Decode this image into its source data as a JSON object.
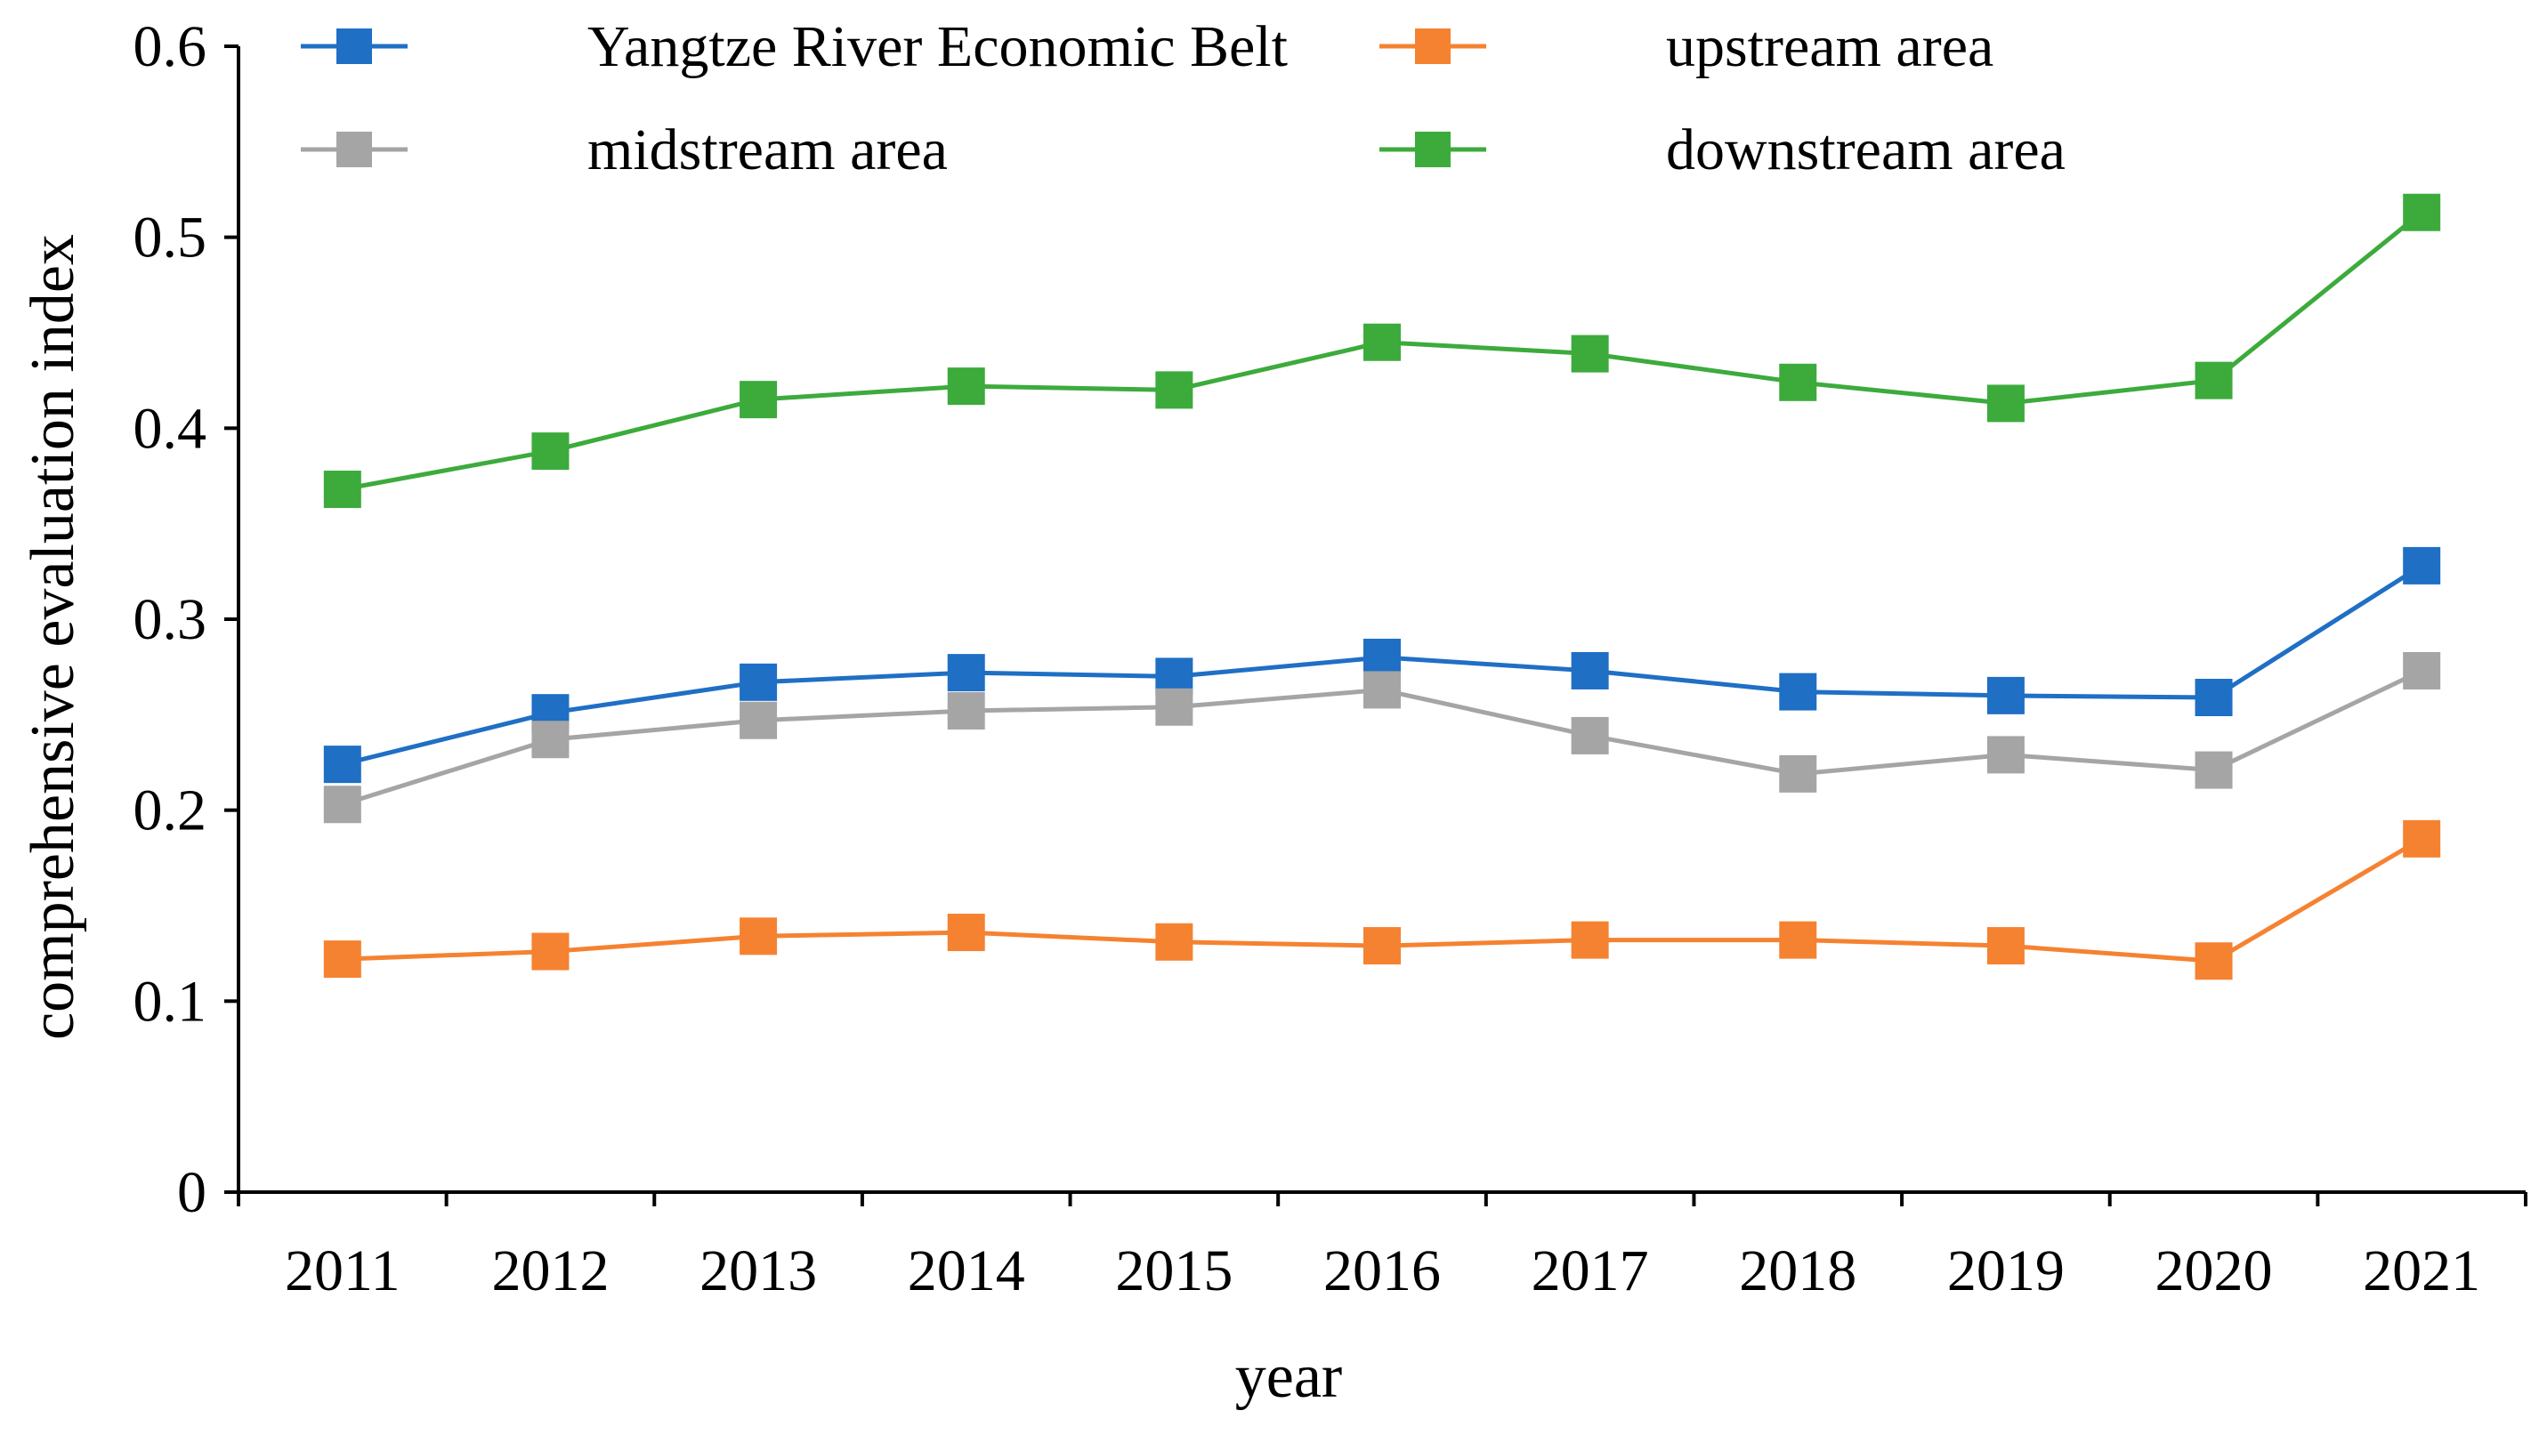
{
  "chart_data": {
    "type": "line",
    "title": "",
    "xlabel": "year",
    "ylabel": "comprehensive evaluation index",
    "categories": [
      "2011",
      "2012",
      "2013",
      "2014",
      "2015",
      "2016",
      "2017",
      "2018",
      "2019",
      "2020",
      "2021"
    ],
    "ylim": [
      0,
      0.6
    ],
    "yticks": [
      "0",
      "0.1",
      "0.2",
      "0.3",
      "0.4",
      "0.5",
      "0.6"
    ],
    "ytick_values": [
      0,
      0.1,
      0.2,
      0.3,
      0.4,
      0.5,
      0.6
    ],
    "grid": false,
    "legend_position": "top",
    "series": [
      {
        "name": "Yangtze River Economic Belt",
        "color": "#1f6fc5",
        "marker": "square",
        "values": [
          0.224,
          0.251,
          0.267,
          0.272,
          0.27,
          0.28,
          0.273,
          0.262,
          0.26,
          0.259,
          0.328
        ]
      },
      {
        "name": "upstream area",
        "color": "#f58231",
        "marker": "square",
        "values": [
          0.122,
          0.126,
          0.134,
          0.136,
          0.131,
          0.129,
          0.132,
          0.132,
          0.129,
          0.121,
          0.185
        ]
      },
      {
        "name": "midstream area",
        "color": "#a5a5a5",
        "marker": "square",
        "values": [
          0.203,
          0.237,
          0.247,
          0.252,
          0.254,
          0.263,
          0.239,
          0.219,
          0.229,
          0.221,
          0.273
        ]
      },
      {
        "name": "downstream area",
        "color": "#3cab3c",
        "marker": "square",
        "values": [
          0.368,
          0.388,
          0.415,
          0.422,
          0.42,
          0.445,
          0.439,
          0.424,
          0.413,
          0.425,
          0.513
        ]
      }
    ]
  }
}
